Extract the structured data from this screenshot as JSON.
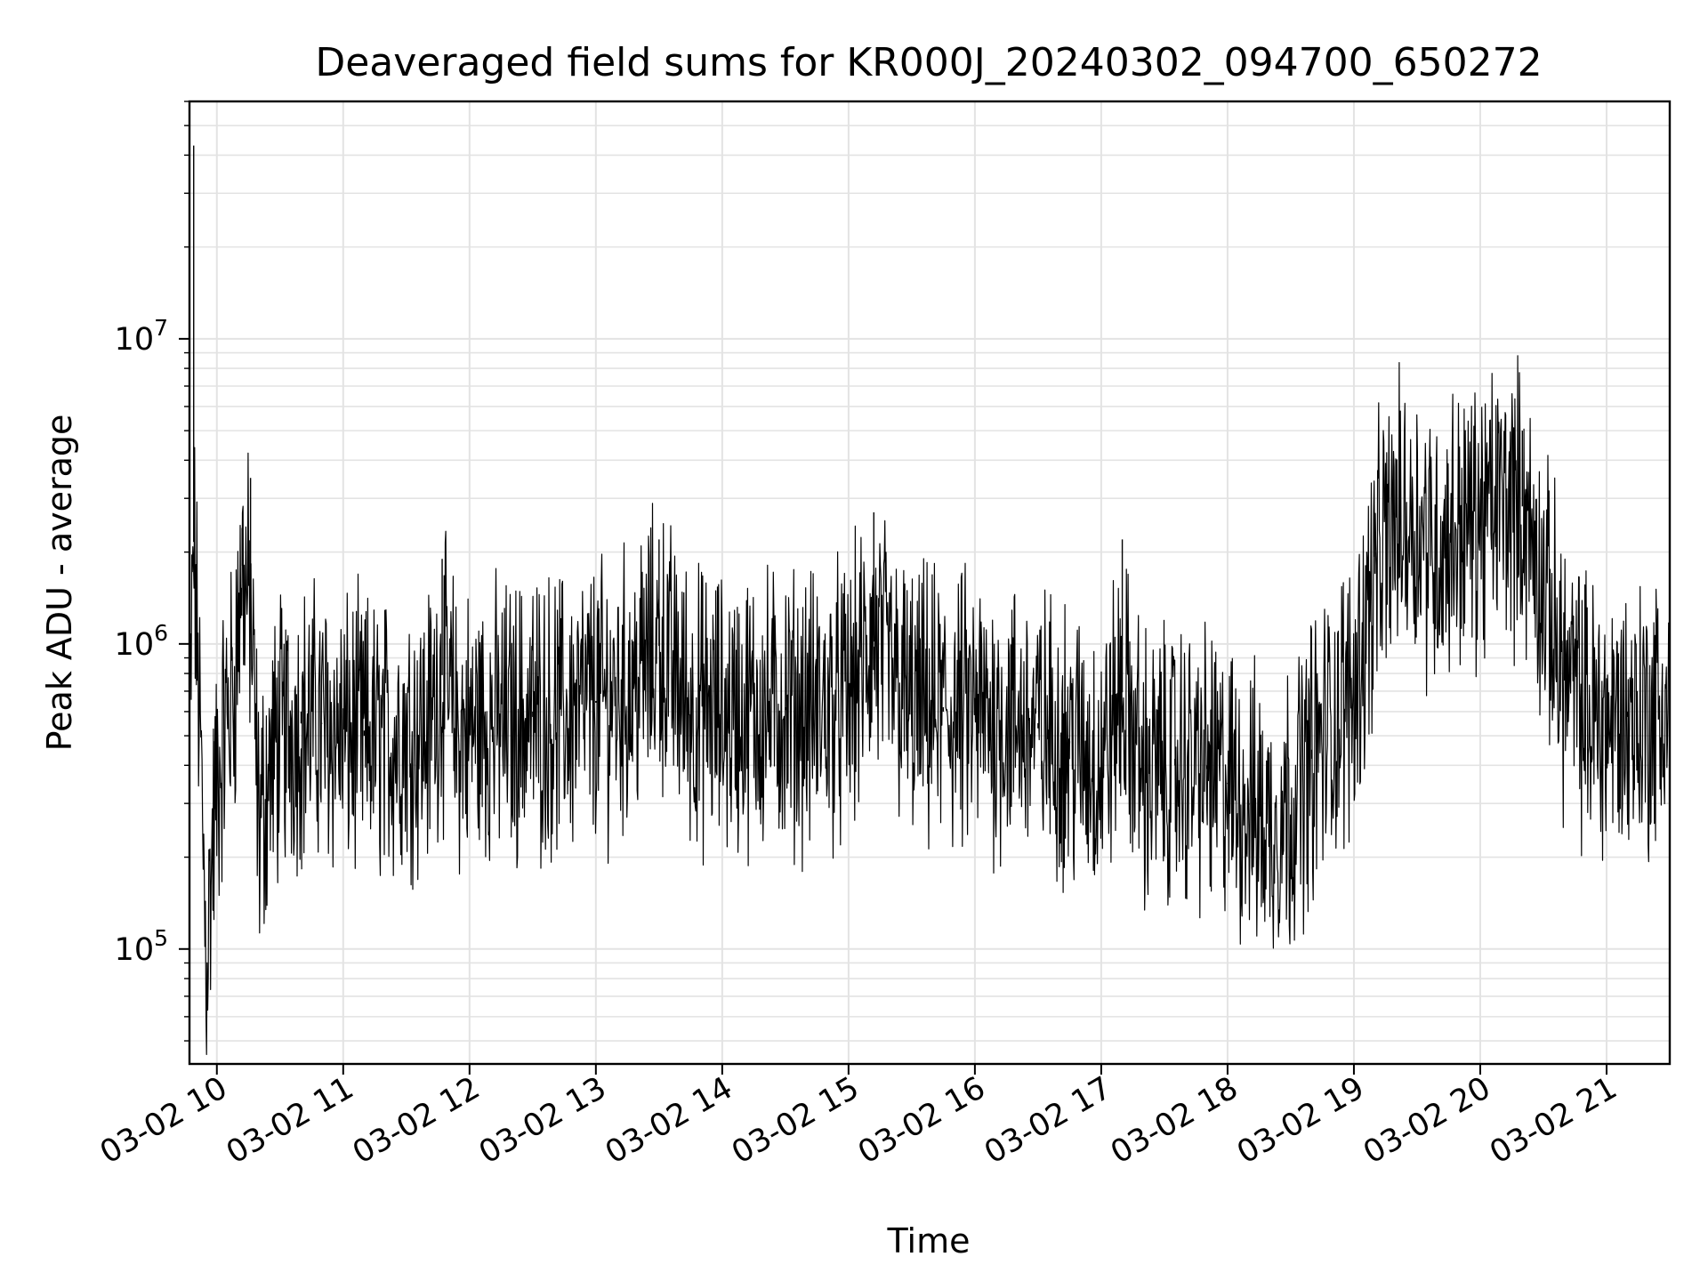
{
  "chart_data": {
    "type": "line",
    "title": "Deaveraged field sums for KR000J_20240302_094700_650272",
    "xlabel": "Time",
    "ylabel": "Peak ADU - average",
    "yscale": "log",
    "ylim": [
      42000,
      60000000
    ],
    "xlim": [
      "2024-03-02 09:47",
      "2024-03-02 21:30"
    ],
    "grid": true,
    "line_color": "#000000",
    "grid_color": "#e3e3e3",
    "x_ticks": [
      {
        "value": "2024-03-02 10:00",
        "label": "03-02 10"
      },
      {
        "value": "2024-03-02 11:00",
        "label": "03-02 11"
      },
      {
        "value": "2024-03-02 12:00",
        "label": "03-02 12"
      },
      {
        "value": "2024-03-02 13:00",
        "label": "03-02 13"
      },
      {
        "value": "2024-03-02 14:00",
        "label": "03-02 14"
      },
      {
        "value": "2024-03-02 15:00",
        "label": "03-02 15"
      },
      {
        "value": "2024-03-02 16:00",
        "label": "03-02 16"
      },
      {
        "value": "2024-03-02 17:00",
        "label": "03-02 17"
      },
      {
        "value": "2024-03-02 18:00",
        "label": "03-02 18"
      },
      {
        "value": "2024-03-02 19:00",
        "label": "03-02 19"
      },
      {
        "value": "2024-03-02 20:00",
        "label": "03-02 20"
      },
      {
        "value": "2024-03-02 21:00",
        "label": "03-02 21"
      }
    ],
    "y_ticks": [
      {
        "value": 100000,
        "base": "10",
        "exp": "5"
      },
      {
        "value": 1000000,
        "base": "10",
        "exp": "6"
      },
      {
        "value": 10000000,
        "base": "10",
        "exp": "7"
      }
    ],
    "series": [
      {
        "x": [
          "2024-03-02 09:47",
          "2024-03-02 09:49",
          "2024-03-02 09:52",
          "2024-03-02 09:55",
          "2024-03-02 09:59",
          "2024-03-02 10:04",
          "2024-03-02 10:08",
          "2024-03-02 10:12",
          "2024-03-02 10:16",
          "2024-03-02 10:20",
          "2024-03-02 10:25",
          "2024-03-02 10:30",
          "2024-03-02 10:40",
          "2024-03-02 10:50",
          "2024-03-02 11:00",
          "2024-03-02 11:10",
          "2024-03-02 11:20",
          "2024-03-02 11:30",
          "2024-03-02 11:40",
          "2024-03-02 11:47",
          "2024-03-02 11:55",
          "2024-03-02 12:05",
          "2024-03-02 12:15",
          "2024-03-02 12:30",
          "2024-03-02 12:45",
          "2024-03-02 13:00",
          "2024-03-02 13:15",
          "2024-03-02 13:30",
          "2024-03-02 13:45",
          "2024-03-02 14:00",
          "2024-03-02 14:15",
          "2024-03-02 14:30",
          "2024-03-02 14:45",
          "2024-03-02 15:00",
          "2024-03-02 15:12",
          "2024-03-02 15:30",
          "2024-03-02 15:45",
          "2024-03-02 16:00",
          "2024-03-02 16:15",
          "2024-03-02 16:30",
          "2024-03-02 16:45",
          "2024-03-02 17:00",
          "2024-03-02 17:10",
          "2024-03-02 17:20",
          "2024-03-02 17:35",
          "2024-03-02 17:50",
          "2024-03-02 18:00",
          "2024-03-02 18:10",
          "2024-03-02 18:20",
          "2024-03-02 18:30",
          "2024-03-02 18:40",
          "2024-03-02 18:50",
          "2024-03-02 19:00",
          "2024-03-02 19:10",
          "2024-03-02 19:20",
          "2024-03-02 19:30",
          "2024-03-02 19:40",
          "2024-03-02 19:50",
          "2024-03-02 20:00",
          "2024-03-02 20:10",
          "2024-03-02 20:20",
          "2024-03-02 20:30",
          "2024-03-02 20:40",
          "2024-03-02 20:50",
          "2024-03-02 21:00",
          "2024-03-02 21:10",
          "2024-03-02 21:20",
          "2024-03-02 21:30"
        ],
        "y": [
          450000,
          43000000,
          520000,
          90000,
          480000,
          550000,
          700000,
          2400000,
          3500000,
          250000,
          450000,
          500000,
          600000,
          550000,
          500000,
          520000,
          480000,
          550000,
          520000,
          1900000,
          500000,
          600000,
          550000,
          600000,
          580000,
          650000,
          700000,
          2200000,
          620000,
          580000,
          600000,
          620000,
          600000,
          650000,
          2700000,
          600000,
          620000,
          580000,
          560000,
          550000,
          480000,
          400000,
          2200000,
          380000,
          420000,
          400000,
          350000,
          300000,
          250000,
          300000,
          450000,
          550000,
          700000,
          2000000,
          3500000,
          2500000,
          2000000,
          3000000,
          2500000,
          3000000,
          5000000,
          1500000,
          800000,
          600000,
          550000,
          600000,
          580000,
          620000
        ]
      }
    ]
  }
}
